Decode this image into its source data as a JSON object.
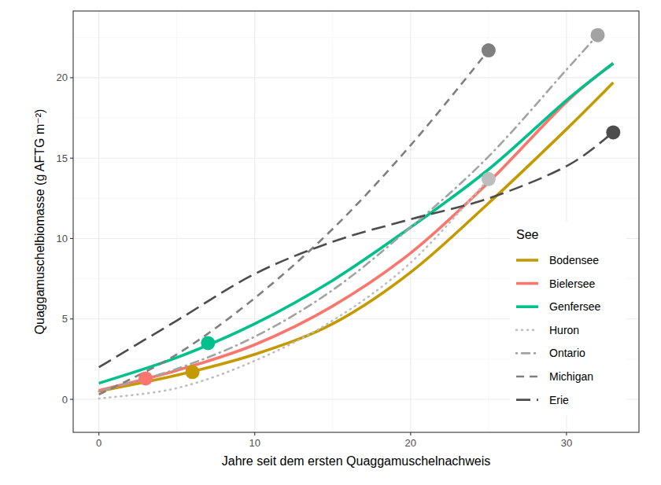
{
  "chart_data": {
    "type": "line",
    "x_label": "Jahre seit dem ersten Quaggamuschelnachweis",
    "y_label": "Quaggamuschelbiomasse (g AFTG m⁻²)",
    "xlim": [
      -1.65,
      34.65
    ],
    "ylim": [
      -2.05,
      24.15
    ],
    "xticks": [
      0,
      10,
      20,
      30
    ],
    "yticks": [
      0,
      5,
      10,
      15,
      20
    ],
    "grid": true,
    "legend": "right",
    "legend_title": "See",
    "series": [
      {
        "name": "Bodensee",
        "color": "#C59900",
        "line_style": "solid",
        "x": [
          0,
          5,
          10,
          15,
          20,
          25,
          30,
          33
        ],
        "values": [
          0.5,
          1.5,
          2.8,
          4.7,
          7.9,
          12.2,
          16.8,
          19.7
        ],
        "point": {
          "x": 6,
          "y": 1.7
        }
      },
      {
        "name": "Bielersee",
        "color": "#F8766D",
        "line_style": "solid",
        "x": [
          0,
          5,
          10,
          15,
          20,
          25,
          30,
          33
        ],
        "values": [
          0.55,
          1.8,
          3.4,
          5.8,
          9.1,
          13.5,
          18.5,
          20.9
        ],
        "point": {
          "x": 3,
          "y": 1.3
        }
      },
      {
        "name": "Genfersee",
        "color": "#00C08B",
        "line_style": "solid",
        "x": [
          0,
          5,
          10,
          15,
          20,
          25,
          30,
          33
        ],
        "values": [
          1.0,
          2.6,
          4.7,
          7.4,
          10.7,
          14.3,
          18.6,
          20.9
        ],
        "point": {
          "x": 7,
          "y": 3.5
        }
      },
      {
        "name": "Huron",
        "color": "#BDBDBD",
        "line_style": "dotted",
        "x": [
          0,
          5,
          10,
          15,
          20,
          25
        ],
        "values": [
          0.05,
          0.7,
          2.4,
          4.9,
          8.5,
          13.7
        ],
        "point": {
          "x": 25,
          "y": 13.7
        }
      },
      {
        "name": "Ontario",
        "color": "#A3A3A3",
        "line_style": "dotdash",
        "x": [
          0,
          5,
          10,
          15,
          20,
          25,
          30,
          32
        ],
        "values": [
          0.5,
          1.9,
          3.9,
          6.8,
          10.7,
          15.1,
          20.5,
          22.65
        ],
        "point": {
          "x": 32,
          "y": 22.65
        }
      },
      {
        "name": "Michigan",
        "color": "#7F7F7F",
        "line_style": "dashed",
        "x": [
          0,
          5,
          10,
          15,
          20,
          25
        ],
        "values": [
          0.3,
          2.8,
          6.3,
          10.6,
          15.8,
          21.7
        ],
        "point": {
          "x": 25,
          "y": 21.7
        }
      },
      {
        "name": "Erie",
        "color": "#4D4D4D",
        "line_style": "longdash",
        "x": [
          0,
          5,
          10,
          15,
          20,
          25,
          30,
          33
        ],
        "values": [
          2.0,
          4.9,
          7.8,
          9.8,
          11.2,
          12.5,
          14.5,
          16.6
        ],
        "point": {
          "x": 33,
          "y": 16.6
        }
      }
    ]
  }
}
